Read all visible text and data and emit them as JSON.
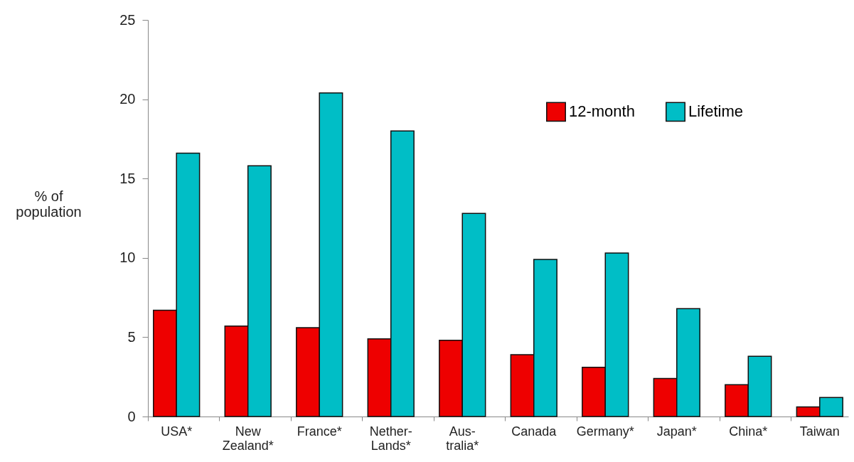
{
  "chart_data": {
    "type": "bar",
    "ylabel": "% of population",
    "categories": [
      "USA*",
      "New Zealand*",
      "France*",
      "Nether-Lands*",
      "Aus-tralia*",
      "Canada",
      "Germany*",
      "Japan*",
      "China*",
      "Taiwan"
    ],
    "series": [
      {
        "name": "12-month",
        "color": "#ee0000",
        "values": [
          6.7,
          5.7,
          5.6,
          4.9,
          4.8,
          3.9,
          3.1,
          2.4,
          2.0,
          0.6
        ]
      },
      {
        "name": "Lifetime",
        "color": "#00bec6",
        "values": [
          16.6,
          15.8,
          20.4,
          18.0,
          12.8,
          9.9,
          10.3,
          6.8,
          3.8,
          1.2
        ]
      }
    ],
    "ylim": [
      0,
      25
    ],
    "yticks": [
      0,
      5,
      10,
      15,
      20,
      25
    ],
    "grid": false,
    "legend": "top right"
  }
}
